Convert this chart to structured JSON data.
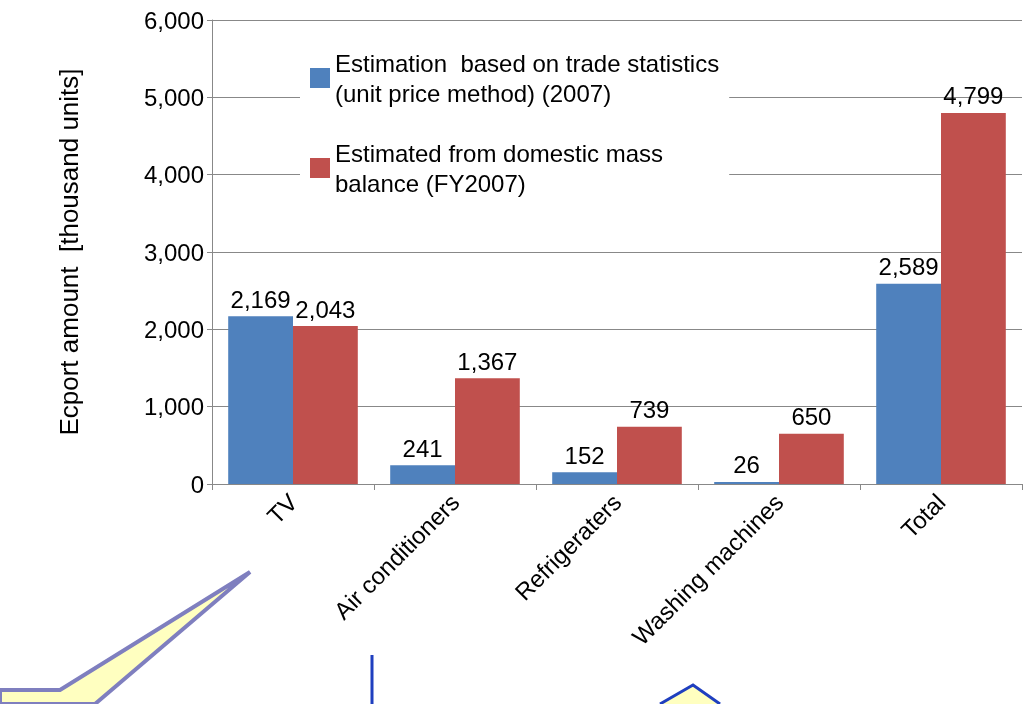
{
  "chart_data": {
    "type": "bar",
    "ylabel": "Ecport amount  [thousand units]",
    "categories": [
      "TV",
      "Air conditioners",
      "Refrigeraters",
      "Washing machines",
      "Total"
    ],
    "series": [
      {
        "name": "Estimation  based on trade statistics\n(unit price method) (2007)",
        "color": "#4f81bd",
        "values": [
          2169,
          241,
          152,
          26,
          2589
        ],
        "value_labels": [
          "2,169",
          "241",
          "152",
          "26",
          "2,589"
        ]
      },
      {
        "name": "Estimated from domestic mass\nbalance (FY2007)",
        "color": "#c0504d",
        "values": [
          2043,
          1367,
          739,
          650,
          4799
        ],
        "value_labels": [
          "2,043",
          "1,367",
          "739",
          "650",
          "4,799"
        ]
      }
    ],
    "ylim": [
      0,
      6000
    ],
    "yticks": [
      0,
      {
        "value": 1000,
        "label": "1,000"
      },
      {
        "value": 2000,
        "label": "2,000"
      },
      {
        "value": 3000,
        "label": "3,000"
      },
      {
        "value": 4000,
        "label": "4,000"
      },
      {
        "value": 5000,
        "label": "5,000"
      },
      {
        "value": 6000,
        "label": "6,000"
      }
    ],
    "grid": "y",
    "legend": "top"
  }
}
